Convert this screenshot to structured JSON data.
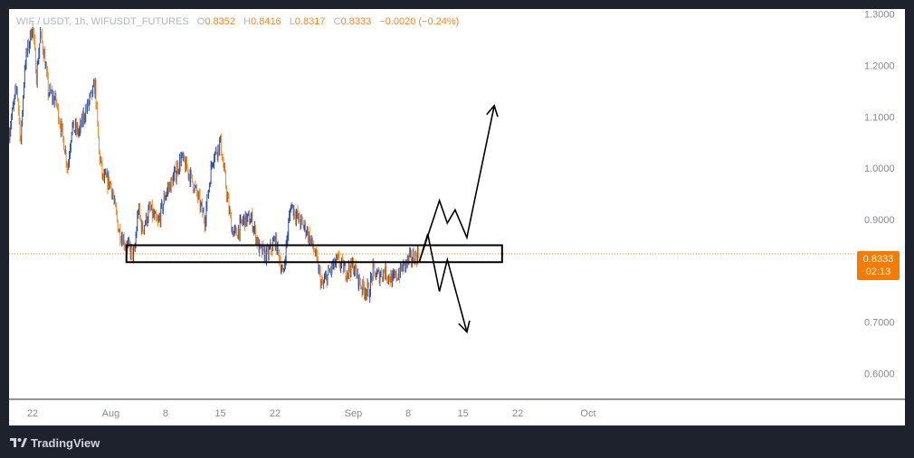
{
  "legend": {
    "symbol": "WIF / USDT",
    "interval": "1h",
    "exchange": "WIFUSDT_FUTURES",
    "open_label": "O",
    "open": "0.8352",
    "high_label": "H",
    "high": "0.8416",
    "low_label": "L",
    "low": "0.8317",
    "close_label": "C",
    "close": "0.8333",
    "change": "−0.0020 (−0.24%)"
  },
  "price_tag": {
    "price": "0.8333",
    "countdown": "02:13"
  },
  "brand": {
    "name": "TradingView"
  },
  "colors": {
    "up": "#2b4ea8",
    "down": "#f08a24",
    "axis_text": "#868993",
    "tag_bg": "#f57c00",
    "annotation": "#000000",
    "price_line": "#f57c00"
  },
  "chart_data": {
    "type": "candlestick",
    "title": "WIF / USDT, 1h, WIFUSDT_FUTURES",
    "x_domain": [
      0,
      108
    ],
    "y_domain": [
      0.55,
      1.31
    ],
    "x_tick_labels": [
      {
        "label": "22",
        "x": 3
      },
      {
        "label": "Aug",
        "x": 13
      },
      {
        "label": "8",
        "x": 20
      },
      {
        "label": "15",
        "x": 27
      },
      {
        "label": "22",
        "x": 34
      },
      {
        "label": "Sep",
        "x": 44
      },
      {
        "label": "8",
        "x": 51
      },
      {
        "label": "15",
        "x": 58
      },
      {
        "label": "22",
        "x": 65
      },
      {
        "label": "Oct",
        "x": 74
      }
    ],
    "y_tick_labels": [
      "1.3000",
      "1.2000",
      "1.1000",
      "1.0000",
      "0.9000",
      "0.7000",
      "0.6000"
    ],
    "y_tick_values": [
      1.3,
      1.2,
      1.1,
      1.0,
      0.9,
      0.7,
      0.6
    ],
    "current_price": 0.8333,
    "price_path": [
      [
        0,
        1.07
      ],
      [
        1,
        1.16
      ],
      [
        1.5,
        1.05
      ],
      [
        2,
        1.2
      ],
      [
        3,
        1.28
      ],
      [
        3.5,
        1.18
      ],
      [
        4,
        1.26
      ],
      [
        4.5,
        1.22
      ],
      [
        5,
        1.15
      ],
      [
        6,
        1.13
      ],
      [
        7,
        1.05
      ],
      [
        7.5,
        1.0
      ],
      [
        8,
        1.08
      ],
      [
        9,
        1.07
      ],
      [
        9.5,
        1.1
      ],
      [
        10,
        1.12
      ],
      [
        11,
        1.16
      ],
      [
        11.5,
        1.03
      ],
      [
        12,
        0.98
      ],
      [
        13,
        0.97
      ],
      [
        14,
        0.88
      ],
      [
        15,
        0.85
      ],
      [
        16,
        0.83
      ],
      [
        16.5,
        0.92
      ],
      [
        17,
        0.88
      ],
      [
        18,
        0.92
      ],
      [
        19,
        0.89
      ],
      [
        20,
        0.95
      ],
      [
        21,
        0.98
      ],
      [
        22,
        1.02
      ],
      [
        23,
        0.99
      ],
      [
        24,
        0.95
      ],
      [
        25,
        0.9
      ],
      [
        26,
        1.02
      ],
      [
        27,
        1.05
      ],
      [
        28,
        0.93
      ],
      [
        28.5,
        0.88
      ],
      [
        29,
        0.87
      ],
      [
        30,
        0.9
      ],
      [
        31,
        0.9
      ],
      [
        32,
        0.84
      ],
      [
        33,
        0.83
      ],
      [
        34,
        0.86
      ],
      [
        34.5,
        0.83
      ],
      [
        35,
        0.79
      ],
      [
        36,
        0.93
      ],
      [
        37,
        0.9
      ],
      [
        38,
        0.88
      ],
      [
        39,
        0.84
      ],
      [
        40,
        0.77
      ],
      [
        41,
        0.8
      ],
      [
        42,
        0.82
      ],
      [
        43,
        0.8
      ],
      [
        44,
        0.81
      ],
      [
        45,
        0.77
      ],
      [
        46,
        0.76
      ],
      [
        46.5,
        0.8
      ],
      [
        47,
        0.79
      ],
      [
        48,
        0.8
      ],
      [
        49,
        0.78
      ],
      [
        50,
        0.8
      ],
      [
        51,
        0.82
      ],
      [
        52,
        0.83
      ],
      [
        52.4,
        0.835
      ]
    ],
    "annotations": {
      "zone": {
        "x0": 15,
        "x1": 63,
        "y0": 0.817,
        "y1": 0.85
      },
      "path_up": [
        [
          52.4,
          0.817
        ],
        [
          55,
          0.937
        ],
        [
          56,
          0.893
        ],
        [
          57,
          0.919
        ],
        [
          58.5,
          0.865
        ],
        [
          62,
          1.122
        ]
      ],
      "path_down": [
        [
          52.4,
          0.817
        ],
        [
          53.5,
          0.872
        ],
        [
          55,
          0.76
        ],
        [
          56,
          0.822
        ],
        [
          58.5,
          0.681
        ]
      ]
    }
  }
}
